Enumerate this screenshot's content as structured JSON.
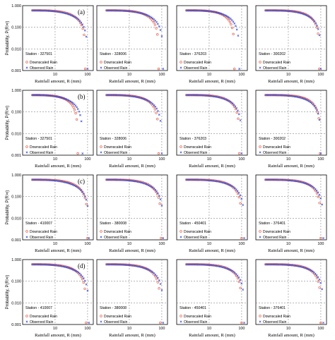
{
  "figure": {
    "row_labels": [
      "(a)",
      "(b)",
      "(c)",
      "(d)"
    ],
    "y_axis_label": "Probability, P(R>r)",
    "x_axis_label": "Rainfall amount, R (mm)"
  },
  "colors": {
    "downscaled": "#e8604c",
    "observed": "#3a4fd0",
    "grid": "#888888"
  },
  "chart_data": [
    {
      "type": "scatter",
      "row": "(a)",
      "col": 1,
      "station_label": "Station - 327501",
      "xscale": "log",
      "yscale": "log",
      "xlim": [
        1,
        150
      ],
      "ylim": [
        0.001,
        1
      ],
      "x_ticks": [
        "10",
        "100"
      ],
      "y_ticks": [
        "0.001",
        "0.010",
        "0.100",
        "1.000"
      ],
      "legend": [
        "Downscaled Rain",
        "Observed Rain"
      ],
      "legend_position": "bottom-left",
      "series": [
        {
          "name": "Downscaled Rain",
          "x_start": 2,
          "x_end": 85
        },
        {
          "name": "Observed Rain",
          "x_start": 2,
          "x_end": 100
        }
      ]
    },
    {
      "type": "scatter",
      "row": "(a)",
      "col": 2,
      "station_label": "Station - 328006",
      "xscale": "log",
      "yscale": "log",
      "xlim": [
        1,
        150
      ],
      "ylim": [
        0.001,
        1
      ],
      "x_ticks": [
        "10",
        "100"
      ],
      "legend": [
        "Downscaled Rain",
        "Observed Rain"
      ],
      "legend_position": "bottom-left",
      "series": [
        {
          "name": "Downscaled Rain",
          "x_start": 2,
          "x_end": 80
        },
        {
          "name": "Observed Rain",
          "x_start": 2,
          "x_end": 110
        }
      ]
    },
    {
      "type": "scatter",
      "row": "(a)",
      "col": 3,
      "station_label": "Station - 376203",
      "xscale": "log",
      "yscale": "log",
      "xlim": [
        1,
        150
      ],
      "ylim": [
        0.001,
        1
      ],
      "x_ticks": [
        "10",
        "100"
      ],
      "legend": [
        "Downscaled Rain",
        "Observed Rain"
      ],
      "legend_position": "bottom-left",
      "series": [
        {
          "name": "Downscaled Rain",
          "x_start": 2,
          "x_end": 60
        },
        {
          "name": "Observed Rain",
          "x_start": 2,
          "x_end": 85
        }
      ]
    },
    {
      "type": "scatter",
      "row": "(a)",
      "col": 4,
      "station_label": "Station - 300202",
      "xscale": "log",
      "yscale": "log",
      "xlim": [
        1,
        150
      ],
      "ylim": [
        0.001,
        1
      ],
      "x_ticks": [
        "10",
        "100"
      ],
      "legend": [
        "Downscaled Rain",
        "Observed Rain"
      ],
      "legend_position": "bottom-left",
      "series": [
        {
          "name": "Downscaled Rain",
          "x_start": 2,
          "x_end": 90
        },
        {
          "name": "Observed Rain",
          "x_start": 2,
          "x_end": 100
        }
      ]
    },
    {
      "type": "scatter",
      "row": "(b)",
      "col": 1,
      "station_label": "Station - 327501",
      "xscale": "log",
      "yscale": "log",
      "xlim": [
        1,
        150
      ],
      "ylim": [
        0.001,
        1
      ],
      "x_ticks": [
        "10",
        "100"
      ],
      "y_ticks": [
        "0.001",
        "0.010",
        "0.100",
        "1.000"
      ],
      "legend": [
        "Downscaled Rain",
        "Observed Rain"
      ],
      "legend_position": "bottom-left",
      "series": [
        {
          "name": "Downscaled Rain",
          "x_start": 2,
          "x_end": 50
        },
        {
          "name": "Observed Rain",
          "x_start": 2,
          "x_end": 70
        }
      ]
    },
    {
      "type": "scatter",
      "row": "(b)",
      "col": 2,
      "station_label": "Station - 328006",
      "xscale": "log",
      "yscale": "log",
      "xlim": [
        1,
        150
      ],
      "ylim": [
        0.001,
        1
      ],
      "x_ticks": [
        "10",
        "100"
      ],
      "legend": [
        "Downscaled Rain",
        "Observed Rain"
      ],
      "legend_position": "bottom-left",
      "series": [
        {
          "name": "Downscaled Rain",
          "x_start": 2,
          "x_end": 80
        },
        {
          "name": "Observed Rain",
          "x_start": 2,
          "x_end": 100
        }
      ]
    },
    {
      "type": "scatter",
      "row": "(b)",
      "col": 3,
      "station_label": "Station - 376203",
      "xscale": "log",
      "yscale": "log",
      "xlim": [
        1,
        150
      ],
      "ylim": [
        0.001,
        1
      ],
      "x_ticks": [
        "10",
        "100"
      ],
      "legend": [
        "Downscaled Rain",
        "Observed Rain"
      ],
      "legend_position": "bottom-left",
      "series": [
        {
          "name": "Downscaled Rain",
          "x_start": 2,
          "x_end": 85
        },
        {
          "name": "Observed Rain",
          "x_start": 2,
          "x_end": 100
        }
      ]
    },
    {
      "type": "scatter",
      "row": "(b)",
      "col": 4,
      "station_label": "Station - 300202",
      "xscale": "log",
      "yscale": "log",
      "xlim": [
        1,
        150
      ],
      "ylim": [
        0.001,
        1
      ],
      "x_ticks": [
        "10",
        "100"
      ],
      "legend": [
        "Downscaled Rain",
        "Observed Rain"
      ],
      "legend_position": "bottom-left",
      "series": [
        {
          "name": "Downscaled Rain",
          "x_start": 2,
          "x_end": 95
        },
        {
          "name": "Observed Rain",
          "x_start": 2,
          "x_end": 100
        }
      ]
    },
    {
      "type": "scatter",
      "row": "(c)",
      "col": 1,
      "station_label": "Station - 410007",
      "xscale": "log",
      "yscale": "log",
      "xlim": [
        1,
        150
      ],
      "ylim": [
        0.001,
        1
      ],
      "x_ticks": [
        "10",
        "100"
      ],
      "y_ticks": [
        "0.001",
        "0.010",
        "0.100",
        "1.000"
      ],
      "legend": [
        "Downscaled Rain",
        "Observed Rain"
      ],
      "legend_position": "bottom-left",
      "series": [
        {
          "name": "Downscaled Rain",
          "x_start": 2,
          "x_end": 100
        },
        {
          "name": "Observed Rain",
          "x_start": 2,
          "x_end": 110
        }
      ]
    },
    {
      "type": "scatter",
      "row": "(c)",
      "col": 2,
      "station_label": "Station - 380008",
      "xscale": "log",
      "yscale": "log",
      "xlim": [
        1,
        150
      ],
      "ylim": [
        0.001,
        1
      ],
      "x_ticks": [
        "10",
        "100"
      ],
      "legend": [
        "Downscaled Rain",
        "Observed Rain"
      ],
      "legend_position": "bottom-left",
      "series": [
        {
          "name": "Downscaled Rain",
          "x_start": 2,
          "x_end": 95
        },
        {
          "name": "Observed Rain",
          "x_start": 2,
          "x_end": 110
        }
      ]
    },
    {
      "type": "scatter",
      "row": "(c)",
      "col": 3,
      "station_label": "Station - 450401",
      "xscale": "log",
      "yscale": "log",
      "xlim": [
        1,
        150
      ],
      "ylim": [
        0.001,
        1
      ],
      "x_ticks": [
        "10",
        "100"
      ],
      "legend": [
        "Downscaled Rain",
        "Observed Rain"
      ],
      "legend_position": "bottom-left",
      "series": [
        {
          "name": "Downscaled Rain",
          "x_start": 2,
          "x_end": 100
        },
        {
          "name": "Observed Rain",
          "x_start": 2,
          "x_end": 120
        }
      ]
    },
    {
      "type": "scatter",
      "row": "(c)",
      "col": 4,
      "station_label": "Station - 376401",
      "xscale": "log",
      "yscale": "log",
      "xlim": [
        1,
        150
      ],
      "ylim": [
        0.001,
        1
      ],
      "x_ticks": [
        "10",
        "100"
      ],
      "legend": [
        "Downscaled Rain",
        "Observed Rain"
      ],
      "legend_position": "bottom-left",
      "series": [
        {
          "name": "Downscaled Rain",
          "x_start": 2,
          "x_end": 100
        },
        {
          "name": "Observed Rain",
          "x_start": 2,
          "x_end": 120
        }
      ]
    },
    {
      "type": "scatter",
      "row": "(d)",
      "col": 1,
      "station_label": "Station - 410007",
      "xscale": "log",
      "yscale": "log",
      "xlim": [
        1,
        150
      ],
      "ylim": [
        0.001,
        1
      ],
      "x_ticks": [
        "10",
        "100"
      ],
      "y_ticks": [
        "0.001",
        "0.010",
        "0.100",
        "1.000"
      ],
      "legend": [
        "Downscaled Rain",
        "Observed Rain"
      ],
      "legend_position": "bottom-left",
      "series": [
        {
          "name": "Downscaled Rain",
          "x_start": 2,
          "x_end": 90
        },
        {
          "name": "Observed Rain",
          "x_start": 2,
          "x_end": 110
        }
      ]
    },
    {
      "type": "scatter",
      "row": "(d)",
      "col": 2,
      "station_label": "Station - 380008",
      "xscale": "log",
      "yscale": "log",
      "xlim": [
        1,
        150
      ],
      "ylim": [
        0.001,
        1
      ],
      "x_ticks": [
        "10",
        "100"
      ],
      "legend": [
        "Downscaled Rain",
        "Observed Rain"
      ],
      "legend_position": "bottom-left",
      "series": [
        {
          "name": "Downscaled Rain",
          "x_start": 2,
          "x_end": 90
        },
        {
          "name": "Observed Rain",
          "x_start": 2,
          "x_end": 110
        }
      ]
    },
    {
      "type": "scatter",
      "row": "(d)",
      "col": 3,
      "station_label": "Station - 450401",
      "xscale": "log",
      "yscale": "log",
      "xlim": [
        1,
        150
      ],
      "ylim": [
        0.001,
        1
      ],
      "x_ticks": [
        "10",
        "100"
      ],
      "legend": [
        "Downscaled Rain",
        "Observed Rain"
      ],
      "legend_position": "bottom-left",
      "series": [
        {
          "name": "Downscaled Rain",
          "x_start": 2,
          "x_end": 100
        },
        {
          "name": "Observed Rain",
          "x_start": 2,
          "x_end": 120
        }
      ]
    },
    {
      "type": "scatter",
      "row": "(d)",
      "col": 4,
      "station_label": "Station - 376401",
      "xscale": "log",
      "yscale": "log",
      "xlim": [
        1,
        150
      ],
      "ylim": [
        0.001,
        1
      ],
      "x_ticks": [
        "10",
        "100"
      ],
      "legend": [
        "Downscaled Rain",
        "Observed Rain"
      ],
      "legend_position": "bottom-left",
      "series": [
        {
          "name": "Downscaled Rain",
          "x_start": 2,
          "x_end": 100
        },
        {
          "name": "Observed Rain",
          "x_start": 2,
          "x_end": 120
        }
      ]
    }
  ]
}
